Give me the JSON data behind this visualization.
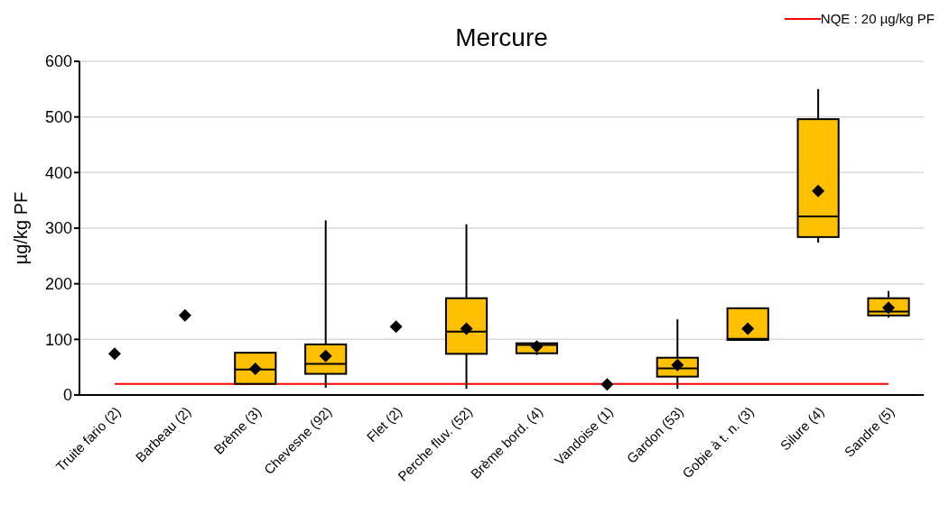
{
  "chart_data": {
    "type": "box",
    "title": "Mercure",
    "ylabel": "µg/kg PF",
    "categories": [
      "Truite fario (2)",
      "Barbeau (2)",
      "Brème (3)",
      "Chevesne (92)",
      "Flet (2)",
      "Perche fluv. (52)",
      "Brème bord. (4)",
      "Vandoise (1)",
      "Gardon (53)",
      "Gobie à t. n. (3)",
      "Silure (4)",
      "Sandre (5)"
    ],
    "series": [
      {
        "type": "box",
        "color": "#ffc000",
        "boxes": [
          null,
          null,
          {
            "low": 20,
            "q1": 20,
            "median": 46,
            "q3": 76,
            "high": 76
          },
          {
            "low": 13,
            "q1": 38,
            "median": 56,
            "q3": 91,
            "high": 314
          },
          null,
          {
            "low": 11,
            "q1": 74,
            "median": 114,
            "q3": 174,
            "high": 307
          },
          {
            "low": 72,
            "q1": 75,
            "median": 90,
            "q3": 93,
            "high": 95
          },
          null,
          {
            "low": 11,
            "q1": 33,
            "median": 48,
            "q3": 67,
            "high": 136
          },
          {
            "low": 99,
            "q1": 99,
            "median": 101,
            "q3": 156,
            "high": 156
          },
          {
            "low": 274,
            "q1": 284,
            "median": 321,
            "q3": 496,
            "high": 550
          },
          {
            "low": 139,
            "q1": 143,
            "median": 150,
            "q3": 174,
            "high": 187
          }
        ]
      },
      {
        "type": "scatter",
        "color": "#000000",
        "marker": "diamond",
        "x": [
          "Truite fario (2)",
          "Barbeau (2)",
          "Brème (3)",
          "Chevesne (92)",
          "Flet (2)",
          "Perche fluv. (52)",
          "Brème bord. (4)",
          "Vandoise (1)",
          "Gardon (53)",
          "Gobie à t. n. (3)",
          "Silure (4)",
          "Sandre (5)"
        ],
        "values": [
          74,
          143,
          47,
          70,
          123,
          119,
          87,
          19,
          54,
          119,
          367,
          157
        ]
      }
    ],
    "ylim": [
      0,
      600
    ],
    "yticks": [
      0,
      100,
      200,
      300,
      400,
      500,
      600
    ],
    "grid": "y",
    "legend": "top right",
    "ref_lines": [
      {
        "axis": "y",
        "value": 20,
        "label": "NQE : 20 µg/kg PF",
        "color": "#ff0000"
      }
    ]
  }
}
